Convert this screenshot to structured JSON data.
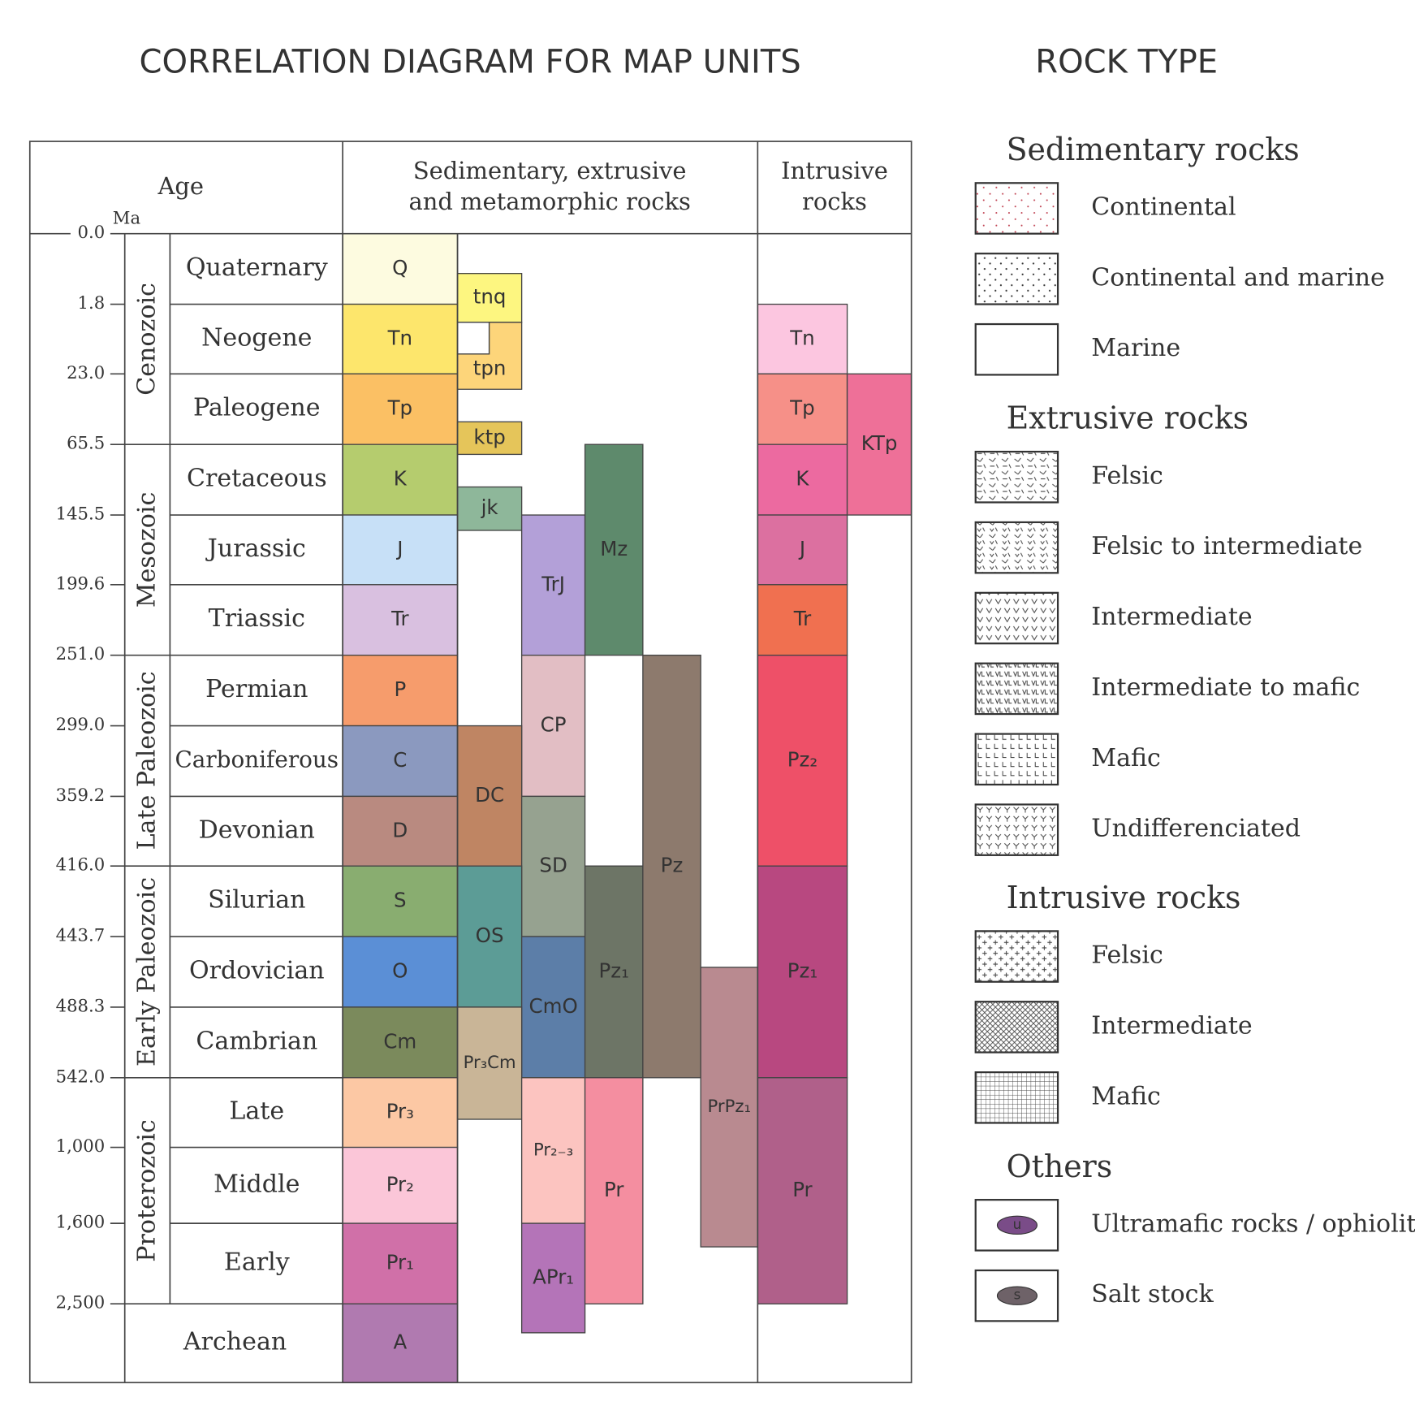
{
  "title": "CORRELATION DIAGRAM FOR MAP UNITS",
  "rock_type_title": "ROCK  TYPE",
  "headers": {
    "age": "Age",
    "ma": "Ma",
    "sedimentary": [
      "Sedimentary, extrusive",
      "and metamorphic rocks"
    ],
    "intrusive": [
      "Intrusive",
      "rocks"
    ]
  },
  "ages": [
    "0.0",
    "1.8",
    "23.0",
    "65.5",
    "145.5",
    "199.6",
    "251.0",
    "299.0",
    "359.2",
    "416.0",
    "443.7",
    "488.3",
    "542.0",
    "1,000",
    "1,600",
    "2,500"
  ],
  "eras": [
    "Cenozoic",
    "Mesozoic",
    "Late Paleozoic",
    "Early Paleozoic",
    "Proterozoic"
  ],
  "periods": [
    "Quaternary",
    "Neogene",
    "Paleogene",
    "Cretaceous",
    "Jurassic",
    "Triassic",
    "Permian",
    "Carboniferous",
    "Devonian",
    "Silurian",
    "Ordovician",
    "Cambrian",
    "Late",
    "Middle",
    "Early",
    "Archean"
  ],
  "sedimentary_units": [
    {
      "label": "Q",
      "color": "#fdfbe0"
    },
    {
      "label": "Tn",
      "color": "#fde66c"
    },
    {
      "label": "Tp",
      "color": "#fbc064"
    },
    {
      "label": "K",
      "color": "#b5cc6e"
    },
    {
      "label": "J",
      "color": "#c7e0f7"
    },
    {
      "label": "Tr",
      "color": "#d9c0e0"
    },
    {
      "label": "P",
      "color": "#f69c6c"
    },
    {
      "label": "C",
      "color": "#8b99bf"
    },
    {
      "label": "D",
      "color": "#b98a80"
    },
    {
      "label": "S",
      "color": "#89ad70"
    },
    {
      "label": "O",
      "color": "#5b8fd6"
    },
    {
      "label": "Cm",
      "color": "#7b8a5c"
    },
    {
      "label": "Pr₃",
      "color": "#fcc8a4"
    },
    {
      "label": "Pr₂",
      "color": "#fbc6d8"
    },
    {
      "label": "Pr₁",
      "color": "#d070a8"
    },
    {
      "label": "A",
      "color": "#b07ab0"
    },
    {
      "label": "tnq",
      "color": "#fdf680"
    },
    {
      "label": "tpn",
      "color": "#fdd57a"
    },
    {
      "label": "ktp",
      "color": "#e5c55a"
    },
    {
      "label": "jk",
      "color": "#8eb79a"
    },
    {
      "label": "TrJ",
      "color": "#b3a0d8"
    },
    {
      "label": "Mz",
      "color": "#5e8a6c"
    },
    {
      "label": "CP",
      "color": "#e2bec4"
    },
    {
      "label": "DC",
      "color": "#bf8563"
    },
    {
      "label": "SD",
      "color": "#96a290"
    },
    {
      "label": "OS",
      "color": "#5c9c96"
    },
    {
      "label": "CmO",
      "color": "#5c7ea8"
    },
    {
      "label": "Pz₁",
      "color": "#6d7566"
    },
    {
      "label": "Pz",
      "color": "#8d7a6d"
    },
    {
      "label": "Pr₃Cm",
      "color": "#c9b597"
    },
    {
      "label": "PrPz₁",
      "color": "#b98a90"
    },
    {
      "label": "Pr₂₋₃",
      "color": "#fcc4c0"
    },
    {
      "label": "APr₁",
      "color": "#b474b8"
    },
    {
      "label": "Pr",
      "color": "#f48ea0"
    }
  ],
  "intrusive_units": [
    {
      "label": "Tn",
      "color": "#fcc6e0"
    },
    {
      "label": "Tp",
      "color": "#f69088"
    },
    {
      "label": "K",
      "color": "#ec6aa0"
    },
    {
      "label": "J",
      "color": "#dc70a0"
    },
    {
      "label": "Tr",
      "color": "#f07050"
    },
    {
      "label": "Pz₂",
      "color": "#ee5068"
    },
    {
      "label": "Pz₁",
      "color": "#b84880"
    },
    {
      "label": "Pr",
      "color": "#b0608a"
    },
    {
      "label": "KTp",
      "color": "#ee7098"
    }
  ],
  "legend": [
    {
      "title": "Sedimentary rocks",
      "items": [
        "Continental",
        "Continental and marine",
        "Marine"
      ]
    },
    {
      "title": "Extrusive rocks",
      "items": [
        "Felsic",
        "Felsic to intermediate",
        "Intermediate",
        "Intermediate to mafic",
        "Mafic",
        "Undifferenciated"
      ]
    },
    {
      "title": "Intrusive rocks",
      "items": [
        "Felsic",
        "Intermediate",
        "Mafic"
      ]
    },
    {
      "title": "Others",
      "items": [
        "Ultramafic rocks / ophiolites",
        "Salt stock"
      ],
      "icons": [
        "u",
        "s"
      ]
    }
  ]
}
